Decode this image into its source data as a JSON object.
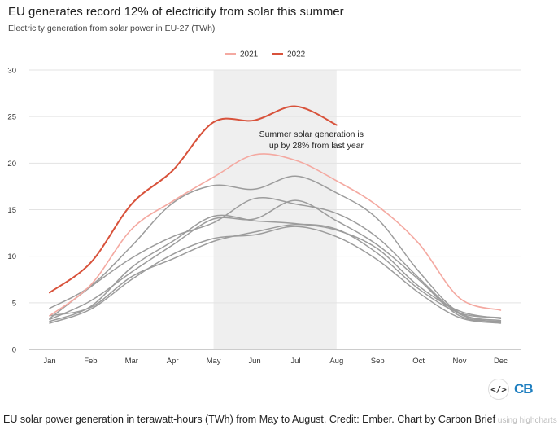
{
  "chart_data": {
    "type": "line",
    "title": "EU generates record 12% of electricity from solar this summer",
    "subtitle": "Electricity generation from solar power in EU-27 (TWh)",
    "categories": [
      "Jan",
      "Feb",
      "Mar",
      "Apr",
      "May",
      "Jun",
      "Jul",
      "Aug",
      "Sep",
      "Oct",
      "Nov",
      "Dec"
    ],
    "yticks": [
      "0",
      "5",
      "10",
      "15",
      "20",
      "25",
      "30"
    ],
    "ylim": [
      0,
      30
    ],
    "grid": true,
    "legend_position": "top-center",
    "highlight": {
      "from": "May",
      "to": "Aug"
    },
    "annotation": [
      "Summer solar generation is",
      "up by 28% from last year"
    ],
    "series": [
      {
        "name": "2021",
        "color": "#f4a9a1",
        "width": 1.6,
        "values": [
          3.6,
          6.9,
          12.9,
          15.9,
          18.5,
          20.9,
          20.3,
          18.1,
          15.4,
          11.4,
          5.5,
          4.2
        ]
      },
      {
        "name": "2022",
        "color": "#d8523b",
        "width": 2.0,
        "values": [
          6.1,
          9.3,
          15.6,
          19.2,
          24.4,
          24.6,
          26.1,
          24.1,
          null,
          null,
          null,
          null
        ]
      },
      {
        "name": "",
        "color": "#9c9c9c",
        "width": 1.5,
        "values": [
          4.4,
          6.8,
          11.1,
          15.7,
          17.6,
          17.2,
          18.6,
          16.8,
          14.0,
          8.4,
          3.9,
          3.1
        ]
      },
      {
        "name": "",
        "color": "#9c9c9c",
        "width": 1.5,
        "values": [
          3.3,
          6.7,
          9.8,
          12.1,
          13.6,
          16.2,
          15.6,
          14.6,
          12.0,
          7.7,
          3.8,
          2.9
        ]
      },
      {
        "name": "",
        "color": "#9c9c9c",
        "width": 1.5,
        "values": [
          3.2,
          5.2,
          8.3,
          11.2,
          14.0,
          14.0,
          16.0,
          13.8,
          11.2,
          7.5,
          3.6,
          3.0
        ]
      },
      {
        "name": "",
        "color": "#9c9c9c",
        "width": 1.5,
        "values": [
          3.0,
          4.6,
          8.8,
          11.6,
          14.3,
          13.8,
          13.5,
          12.8,
          10.8,
          6.8,
          4.1,
          3.3
        ]
      },
      {
        "name": "",
        "color": "#9c9c9c",
        "width": 1.5,
        "values": [
          2.8,
          4.3,
          7.5,
          10.2,
          11.9,
          12.3,
          13.2,
          12.1,
          9.6,
          6.1,
          3.4,
          2.8
        ]
      },
      {
        "name": "",
        "color": "#9c9c9c",
        "width": 1.5,
        "values": [
          3.6,
          4.5,
          7.8,
          9.7,
          11.6,
          12.6,
          13.4,
          12.9,
          10.3,
          6.5,
          3.9,
          3.4
        ]
      }
    ]
  },
  "caption": {
    "text": "EU solar power generation in terawatt-hours (TWh) from May to August. Credit: Ember. Chart by Carbon Brief",
    "suffix": " using highcharts"
  },
  "logo": {
    "embed": "</>",
    "brand": "CB"
  }
}
